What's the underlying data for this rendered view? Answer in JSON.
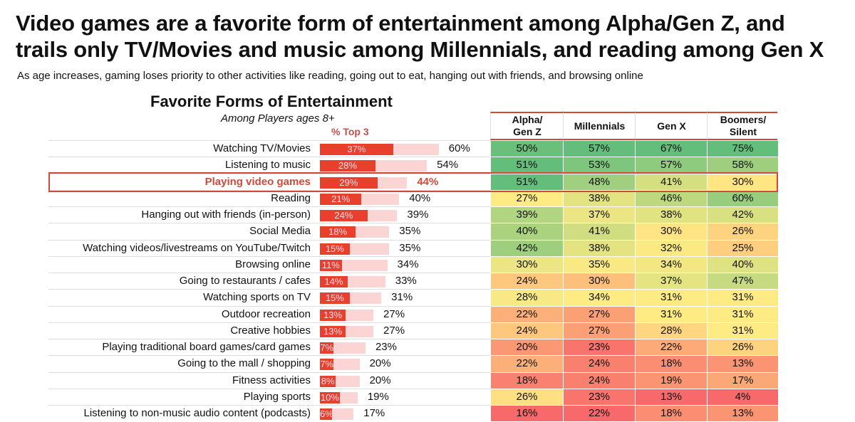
{
  "title_line1": "Video games are a favorite form of entertainment among Alpha/Gen Z, and",
  "title_line2": "trails only TV/Movies and music among Millennials, and reading among Gen X",
  "subtitle": "As age increases, gaming loses priority to other activities like reading, going out to eat, hanging out with friends, and browsing online",
  "chart_data": [
    {
      "type": "bar",
      "title": "Favorite Forms of Entertainment",
      "subtitle": "Among Players ages 8+",
      "series_label": "% Top 3",
      "categories": [
        "Watching TV/Movies",
        "Listening to music",
        "Playing video games",
        "Reading",
        "Hanging out with friends (in-person)",
        "Social Media",
        "Watching videos/livestreams on YouTube/Twitch",
        "Browsing online",
        "Going to restaurants / cafes",
        "Watching sports on TV",
        "Outdoor recreation",
        "Creative hobbies",
        "Playing traditional board games/card games",
        "Going to the mall / shopping",
        "Fitness activities",
        "Playing sports",
        "Listening to non-music audio content (podcasts)"
      ],
      "top1": [
        37,
        28,
        29,
        21,
        24,
        18,
        15,
        11,
        14,
        15,
        13,
        13,
        7,
        7,
        8,
        10,
        6
      ],
      "top3": [
        60,
        54,
        44,
        40,
        39,
        35,
        35,
        34,
        33,
        31,
        27,
        27,
        23,
        20,
        20,
        19,
        17
      ],
      "highlight": "Playing video games",
      "colors": {
        "top1": "#e8402d",
        "top3": "#fbd4d4",
        "highlight": "#d04a3a"
      }
    },
    {
      "type": "heatmap",
      "columns": [
        "Alpha/\nGen Z",
        "Millennials",
        "Gen X",
        "Boomers/\nSilent"
      ],
      "values": [
        [
          50,
          57,
          67,
          75
        ],
        [
          51,
          53,
          57,
          58
        ],
        [
          51,
          48,
          41,
          30
        ],
        [
          27,
          38,
          46,
          60
        ],
        [
          39,
          37,
          38,
          42
        ],
        [
          40,
          41,
          30,
          26
        ],
        [
          42,
          38,
          32,
          25
        ],
        [
          30,
          35,
          34,
          40
        ],
        [
          24,
          30,
          37,
          47
        ],
        [
          28,
          34,
          31,
          31
        ],
        [
          22,
          27,
          31,
          31
        ],
        [
          24,
          27,
          28,
          31
        ],
        [
          20,
          23,
          22,
          26
        ],
        [
          22,
          24,
          18,
          13
        ],
        [
          18,
          24,
          19,
          17
        ],
        [
          26,
          23,
          13,
          4
        ],
        [
          16,
          22,
          18,
          13
        ]
      ],
      "color_scale": {
        "low": "#f8696b",
        "mid": "#ffeb84",
        "high": "#63be7b"
      }
    }
  ]
}
